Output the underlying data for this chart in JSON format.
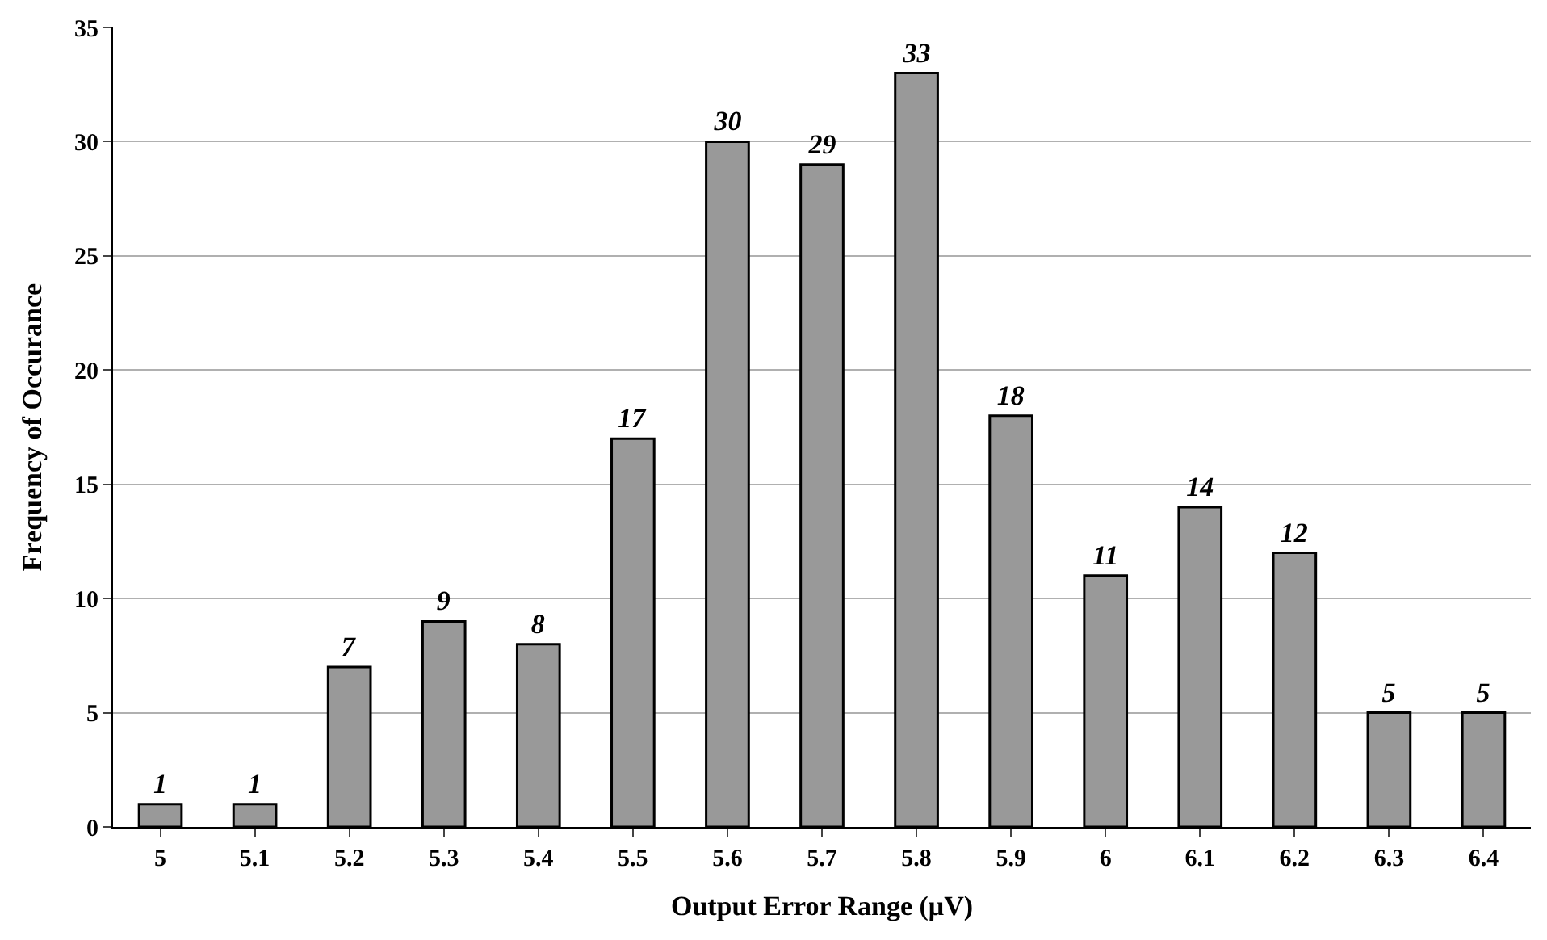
{
  "chart_data": {
    "type": "bar",
    "xlabel": "Output Error Range (μV)",
    "ylabel": "Frequency of Occurance",
    "categories": [
      "5",
      "5.1",
      "5.2",
      "5.3",
      "5.4",
      "5.5",
      "5.6",
      "5.7",
      "5.8",
      "5.9",
      "6",
      "6.1",
      "6.2",
      "6.3",
      "6.4"
    ],
    "values": [
      1,
      1,
      7,
      9,
      8,
      17,
      30,
      29,
      33,
      18,
      11,
      14,
      12,
      5,
      5
    ],
    "color": "#999999",
    "ylim": [
      0,
      35
    ],
    "yticks": [
      0,
      5,
      10,
      15,
      20,
      25,
      30,
      35
    ],
    "grid": "y",
    "data_labels": true,
    "legend": false
  }
}
